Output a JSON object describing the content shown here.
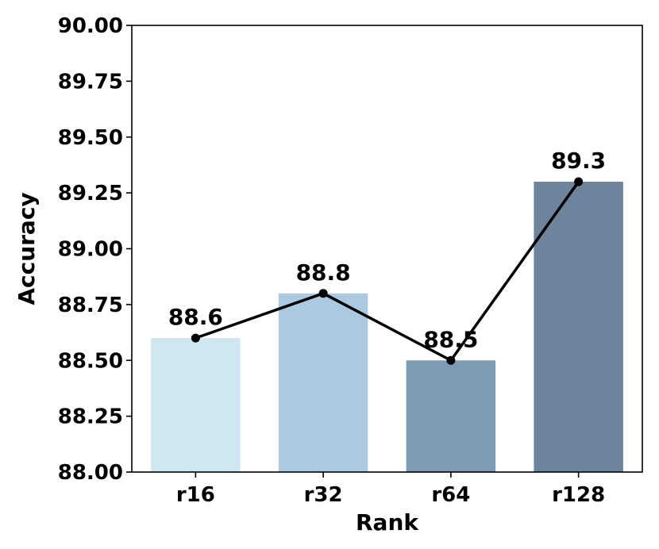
{
  "chart_data": {
    "type": "bar",
    "title": "",
    "xlabel": "Rank",
    "ylabel": "Accuracy",
    "categories": [
      "r16",
      "r32",
      "r64",
      "r128"
    ],
    "values": [
      88.6,
      88.8,
      88.5,
      89.3
    ],
    "data_labels": [
      "88.6",
      "88.8",
      "88.5",
      "89.3"
    ],
    "bar_colors": [
      "#d0e6f1",
      "#abc9e0",
      "#7e9ab5",
      "#6e849c"
    ],
    "line_color": "#000000",
    "ylim": [
      88.0,
      90.0
    ],
    "yticks": [
      88.0,
      88.25,
      88.5,
      88.75,
      89.0,
      89.25,
      89.5,
      89.75,
      90.0
    ],
    "ytick_labels": [
      "88.00",
      "88.25",
      "88.50",
      "88.75",
      "89.00",
      "89.25",
      "89.50",
      "89.75",
      "90.00"
    ],
    "overlay": "line with point markers connecting bar tops",
    "grid": false,
    "legend": "none"
  }
}
